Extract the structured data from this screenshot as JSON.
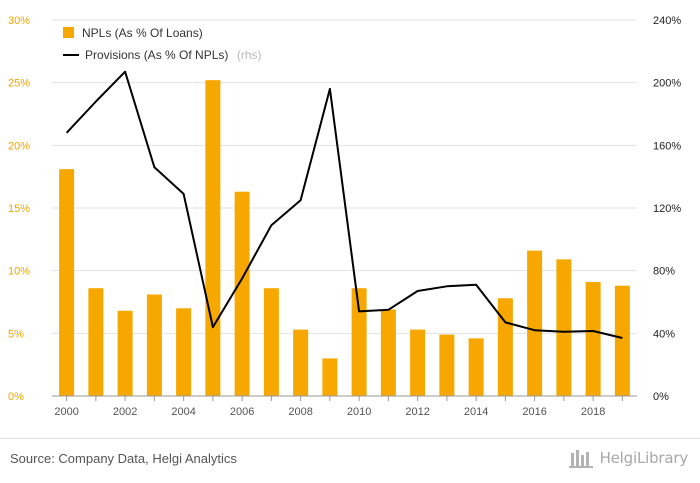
{
  "chart_data": {
    "type": "bar+line",
    "x": [
      2000,
      2001,
      2002,
      2003,
      2004,
      2005,
      2006,
      2007,
      2008,
      2009,
      2010,
      2011,
      2012,
      2013,
      2014,
      2015,
      2016,
      2017,
      2018,
      2019
    ],
    "x_tick_labels": [
      "2000",
      "2002",
      "2004",
      "2006",
      "2008",
      "2010",
      "2012",
      "2014",
      "2016",
      "2018"
    ],
    "series": [
      {
        "name": "NPLs (As % Of Loans)",
        "kind": "bar",
        "axis": "left",
        "color": "#f7a800",
        "values": [
          18.1,
          8.6,
          6.8,
          8.1,
          7.0,
          25.2,
          16.3,
          8.6,
          5.3,
          3.0,
          8.6,
          6.9,
          5.3,
          4.9,
          4.6,
          7.8,
          11.6,
          10.9,
          9.1,
          8.8
        ]
      },
      {
        "name": "Provisions (As % Of NPLs)",
        "name_note": "(rhs)",
        "kind": "line",
        "axis": "right",
        "color": "#000000",
        "values": [
          168,
          188,
          207,
          146,
          129,
          44,
          75,
          109,
          125,
          196,
          54,
          55,
          67,
          70,
          71,
          47,
          42,
          41,
          41.5,
          37
        ]
      }
    ],
    "left_axis": {
      "min": 0,
      "max": 30,
      "ticks": [
        "0%",
        "5%",
        "10%",
        "15%",
        "20%",
        "25%",
        "30%"
      ],
      "tick_values": [
        0,
        5,
        10,
        15,
        20,
        25,
        30
      ],
      "color": "#f0a500"
    },
    "right_axis": {
      "min": 0,
      "max": 240,
      "ticks": [
        "0%",
        "40%",
        "80%",
        "120%",
        "160%",
        "200%",
        "240%"
      ],
      "tick_values": [
        0,
        40,
        80,
        120,
        160,
        200,
        240
      ],
      "color": "#222222"
    },
    "grid": true,
    "legend_position": "top-left"
  },
  "footer": {
    "source": "Source: Company Data, Helgi Analytics",
    "brand": "HelgiLibrary"
  }
}
